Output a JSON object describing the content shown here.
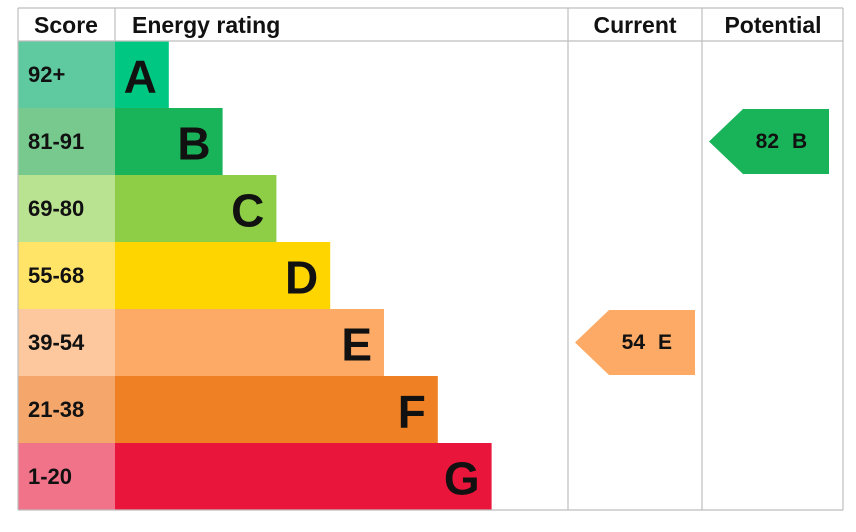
{
  "header": {
    "score": "Score",
    "rating": "Energy rating",
    "current": "Current",
    "potential": "Potential"
  },
  "bands": [
    {
      "score": "92+",
      "letter": "A",
      "color": "#00c781",
      "score_color": "#5fcaa0"
    },
    {
      "score": "81-91",
      "letter": "B",
      "color": "#19b459",
      "score_color": "#77c98d"
    },
    {
      "score": "69-80",
      "letter": "C",
      "color": "#8dce46",
      "score_color": "#b9e291"
    },
    {
      "score": "55-68",
      "letter": "D",
      "color": "#ffd500",
      "score_color": "#ffe467"
    },
    {
      "score": "39-54",
      "letter": "E",
      "color": "#fcaa65",
      "score_color": "#fdc89d"
    },
    {
      "score": "21-38",
      "letter": "F",
      "color": "#ef8023",
      "score_color": "#f4a66b"
    },
    {
      "score": "1-20",
      "letter": "G",
      "color": "#e9153b",
      "score_color": "#f07389"
    }
  ],
  "current": {
    "value": 54,
    "letter": "E"
  },
  "potential": {
    "value": 82,
    "letter": "B"
  }
}
